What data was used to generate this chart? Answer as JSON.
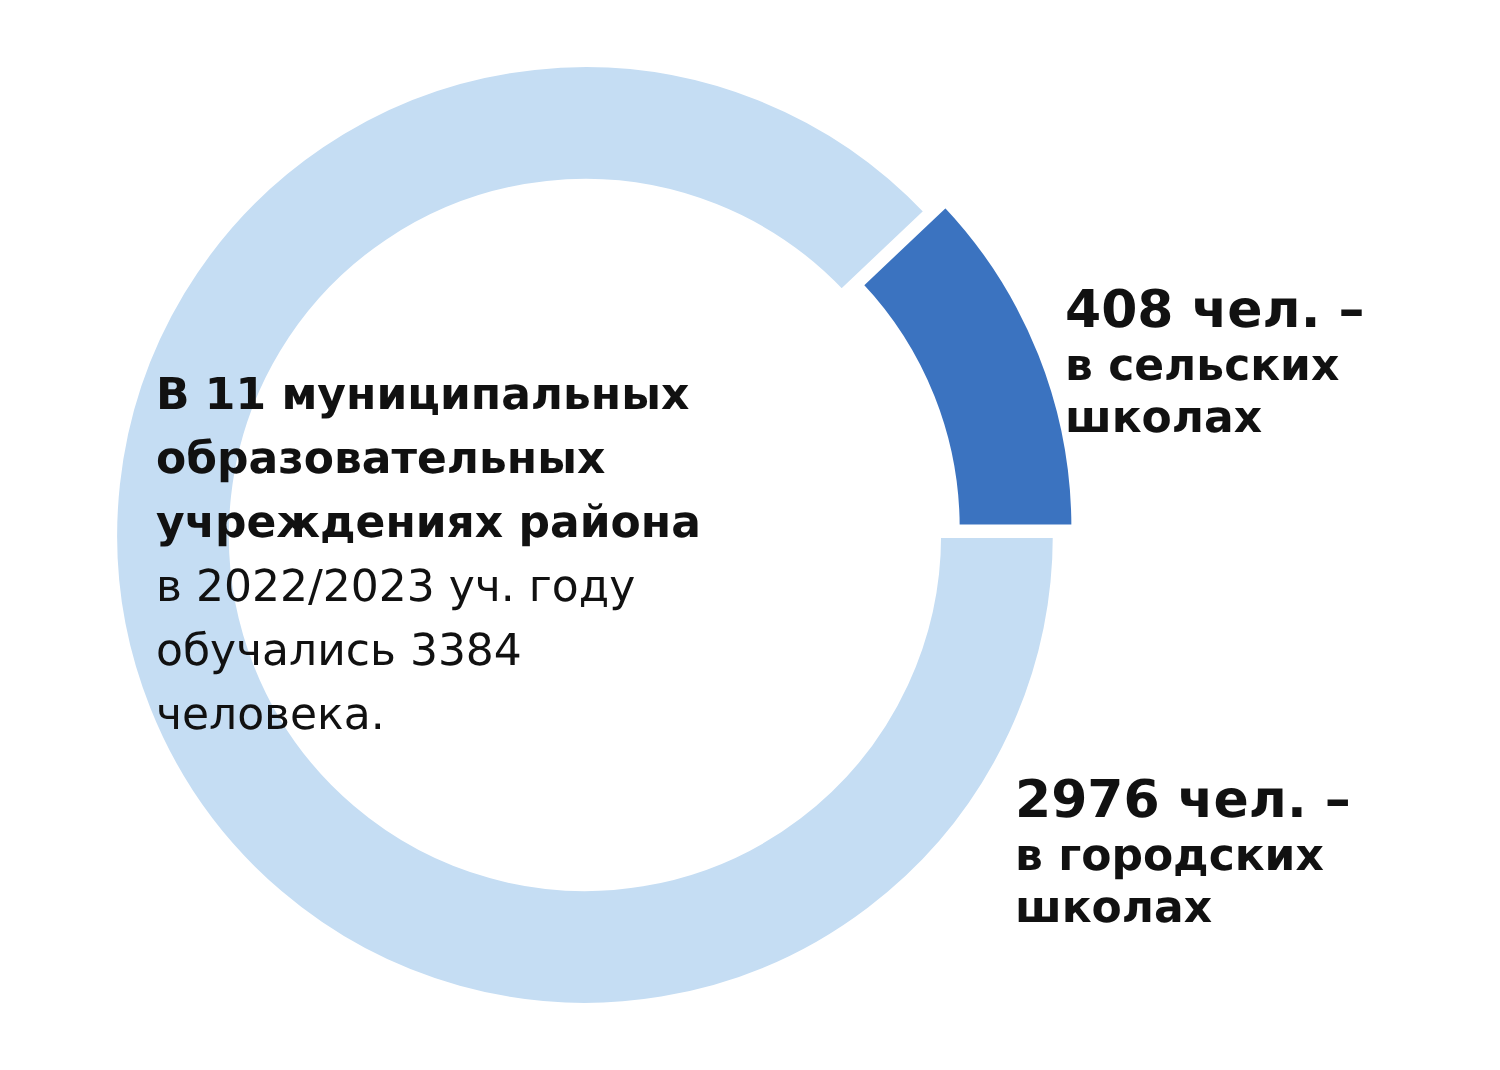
{
  "chart_data": {
    "type": "donut",
    "title": "В 11 муниципальных образовательных учреждениях района",
    "subtitle": "в 2022/2023 уч. году обучались 3384 человека.",
    "categories": [
      "в сельских школах",
      "в городских школах"
    ],
    "values": [
      408,
      2976
    ],
    "value_labels": [
      "408 чел. –",
      "2976 чел. –"
    ],
    "colors": [
      "#3b73c0",
      "#c5ddf3"
    ],
    "legend": false
  }
}
